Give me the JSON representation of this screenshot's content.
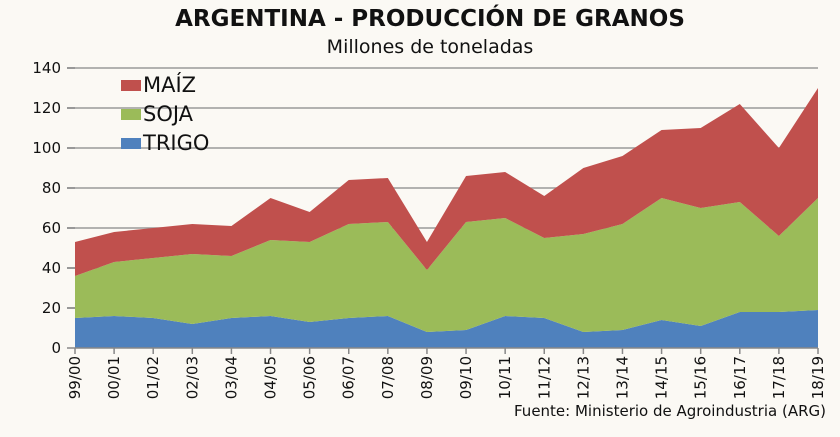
{
  "chart_data": {
    "type": "area",
    "stacked": true,
    "title": "ARGENTINA - PRODUCCIÓN DE GRANOS",
    "subtitle": "Millones de toneladas",
    "source": "Fuente: Ministerio de Agroindustria (ARG)",
    "categories": [
      "99/00",
      "00/01",
      "01/02",
      "02/03",
      "03/04",
      "04/05",
      "05/06",
      "06/07",
      "07/08",
      "08/09",
      "09/10",
      "10/11",
      "11/12",
      "12/13",
      "13/14",
      "14/15",
      "15/16",
      "16/17",
      "17/18",
      "18/19"
    ],
    "ylim": [
      0,
      140
    ],
    "yticks": [
      0,
      20,
      40,
      60,
      80,
      100,
      120,
      140
    ],
    "grid": true,
    "legend_position": "top-left",
    "series": [
      {
        "name": "TRIGO",
        "color": "#4f81bd",
        "values": [
          15,
          16,
          15,
          12,
          15,
          16,
          13,
          15,
          16,
          8,
          9,
          16,
          15,
          8,
          9,
          14,
          11,
          18,
          18,
          19
        ]
      },
      {
        "name": "SOJA",
        "color": "#9bbb59",
        "values": [
          21,
          27,
          30,
          35,
          31,
          38,
          40,
          47,
          47,
          31,
          54,
          49,
          40,
          49,
          53,
          61,
          59,
          55,
          38,
          56
        ]
      },
      {
        "name": "MAÍZ",
        "color": "#c0504d",
        "values": [
          17,
          15,
          15,
          15,
          15,
          21,
          15,
          22,
          22,
          14,
          23,
          23,
          21,
          33,
          34,
          34,
          40,
          49,
          44,
          55
        ]
      }
    ]
  }
}
